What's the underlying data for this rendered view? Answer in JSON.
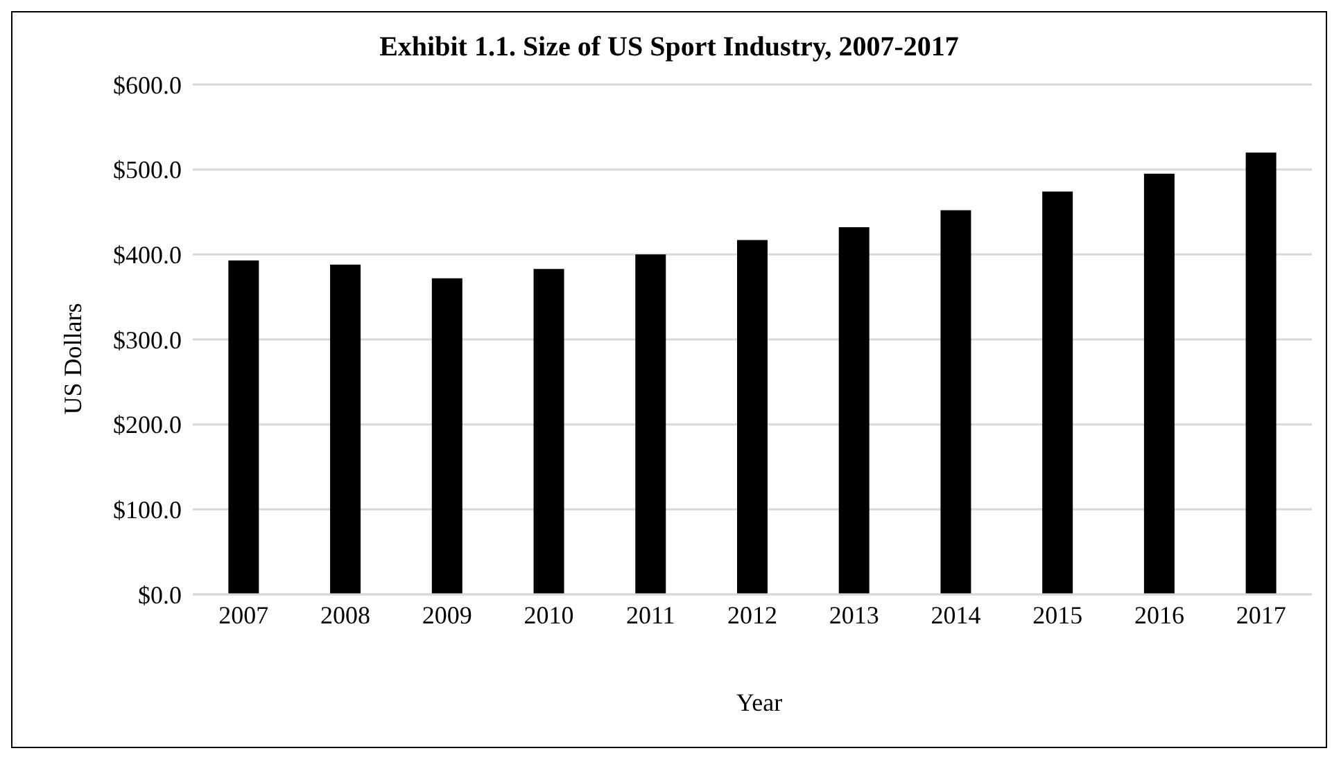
{
  "chart_data": {
    "type": "bar",
    "title": "Exhibit 1.1. Size of US Sport Industry, 2007-2017",
    "xlabel": "Year",
    "ylabel": "US Dollars",
    "categories": [
      "2007",
      "2008",
      "2009",
      "2010",
      "2011",
      "2012",
      "2013",
      "2014",
      "2015",
      "2016",
      "2017"
    ],
    "values": [
      393,
      388,
      372,
      383,
      400,
      417,
      432,
      452,
      474,
      495,
      520
    ],
    "color": "#000000",
    "ylim": [
      0,
      600
    ],
    "yticks": [
      {
        "value": 0,
        "label": "$0.0"
      },
      {
        "value": 100,
        "label": "$100.0"
      },
      {
        "value": 200,
        "label": "$200.0"
      },
      {
        "value": 300,
        "label": "$300.0"
      },
      {
        "value": 400,
        "label": "$400.0"
      },
      {
        "value": 500,
        "label": "$500.0"
      },
      {
        "value": 600,
        "label": "$600.0"
      }
    ],
    "grid": "y",
    "legend": false
  }
}
